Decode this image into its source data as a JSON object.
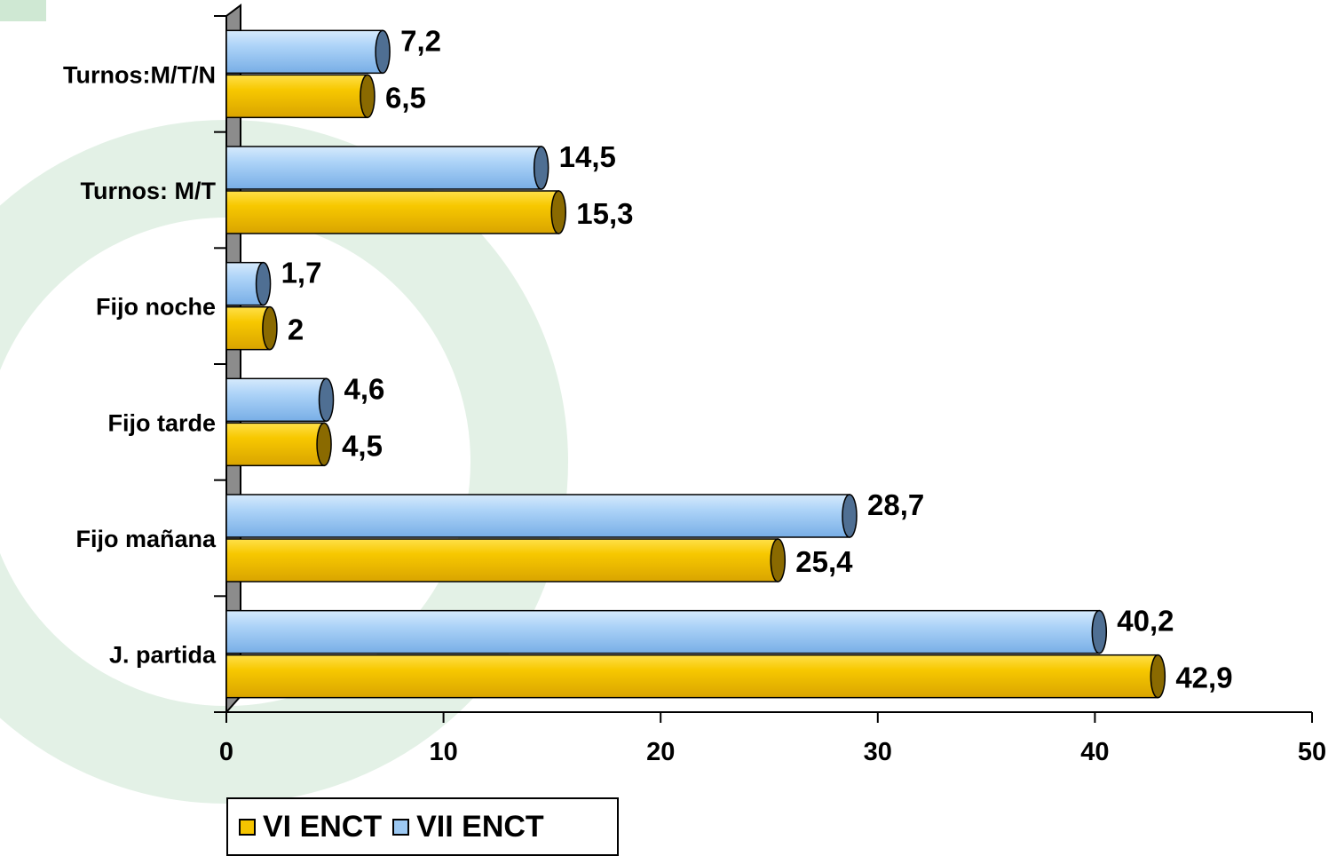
{
  "chart_data": {
    "type": "bar",
    "orientation": "horizontal",
    "categories": [
      "J. partida",
      "Fijo mañana",
      "Fijo tarde",
      "Fijo noche",
      "Turnos: M/T",
      "Turnos:M/T/N"
    ],
    "series": [
      {
        "name": "VI ENCT",
        "values": [
          42.9,
          25.4,
          4.5,
          2,
          15.3,
          6.5
        ],
        "value_labels": [
          "42,9",
          "25,4",
          "4,5",
          "2",
          "15,3",
          "6,5"
        ],
        "color": "#F5C400"
      },
      {
        "name": "VII ENCT",
        "values": [
          40.2,
          28.7,
          4.6,
          1.7,
          14.5,
          7.2
        ],
        "value_labels": [
          "40,2",
          "28,7",
          "4,6",
          "1,7",
          "14,5",
          "7,2"
        ],
        "color": "#9CC8F2"
      }
    ],
    "xlim": [
      0,
      50
    ],
    "x_ticks": [
      "0",
      "10",
      "20",
      "30",
      "40",
      "50"
    ],
    "legend_position": "bottom-left",
    "grid": false
  },
  "legend": {
    "items": [
      {
        "label": "VI ENCT",
        "color": "#F5C400"
      },
      {
        "label": "VII ENCT",
        "color": "#9CC8F2"
      }
    ]
  }
}
